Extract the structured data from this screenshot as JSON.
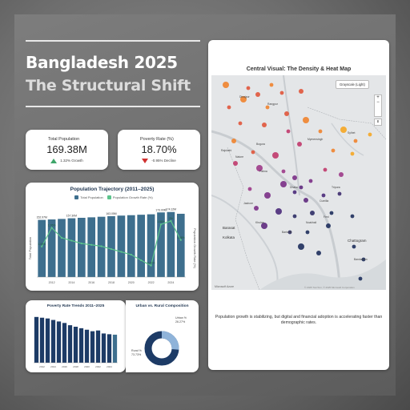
{
  "header": {
    "title": "Bangladesh 2025",
    "subtitle": "The Structural Shift"
  },
  "kpis": {
    "population": {
      "label": "Total Population",
      "value": "169.38M",
      "delta": "1.32% Growth"
    },
    "poverty": {
      "label": "Poverty Rate (%)",
      "value": "18.70%",
      "delta": "-0.95% Decline"
    }
  },
  "trajectory": {
    "title": "Population Trajectory (2011–2025)",
    "legend_population": "Total Population",
    "legend_growth": "Population Growth Rate (%)",
    "ylabel_left": "Total Population",
    "ylabel_right": "Population Growth Rate (%)",
    "x_ticks": [
      "2012",
      "2014",
      "2016",
      "2018",
      "2020",
      "2022",
      "2024"
    ],
    "bar_labels": [
      {
        "label": "152.97M"
      },
      {
        "label": "157.30M"
      },
      {
        "label": "163.05M"
      },
      {
        "label": "173.00M"
      },
      {
        "label": "174.12M"
      }
    ],
    "growth_labels": [
      {
        "label": "1.09%"
      },
      {
        "label": "1.76%"
      },
      {
        "label": "0.41%"
      },
      {
        "label": "1.88%"
      },
      {
        "label": "1.08%"
      },
      {
        "label": "2%"
      }
    ]
  },
  "poverty_trend": {
    "title": "Poverty Rate Trends 2011–2025",
    "x_ticks": [
      "2012",
      "2014",
      "2016",
      "2018",
      "2020",
      "2022",
      "2024"
    ]
  },
  "urban_rural": {
    "title": "Urban vs. Rural Composition",
    "urban_label": "Urban %",
    "urban_value": "26.27%",
    "rural_label": "Rural %",
    "rural_value": "73.73%"
  },
  "map": {
    "title": "Central Visual: The Density & Heat Map",
    "style_button": "Grayscale (Light)",
    "attribution": "Microsoft Azure",
    "copyright": "© 2025 TomTom, © 2025 Microsoft Corporation",
    "places": {
      "barasat": "Barasat",
      "kolkata": "Kolkata",
      "chattogram": "Chattogram",
      "sylhet": "Sylhet",
      "rangpur": "Rangpur",
      "dhaka": "Dhaka",
      "tripura": "Tripura",
      "bandarban": "Bandarban",
      "barisal": "Barishal",
      "khulna": "Khulna",
      "mymensingh": "Mymensingh",
      "rajshahi": "Rajshahi",
      "bogura": "Bogura",
      "jashore": "Jashore",
      "cumilla": "Cumilla",
      "noakhali": "Noakhali",
      "feni": "Feni",
      "pabna": "Pabna",
      "natore": "Natore",
      "dinajpur": "Dinajpur"
    }
  },
  "footnote": "Population growth is stabilizing, but digital and financial adoption is accelerating faster than demographic rates.",
  "chart_data": [
    {
      "type": "bar",
      "title": "Population Trajectory (2011–2025)",
      "x": [
        2011,
        2012,
        2013,
        2014,
        2015,
        2016,
        2017,
        2018,
        2019,
        2020,
        2021,
        2022,
        2023,
        2024,
        2025
      ],
      "series": [
        {
          "name": "Total Population",
          "values": [
            152.97,
            154.2,
            155.6,
            157.3,
            158.6,
            159.9,
            161.4,
            163.05,
            164.5,
            165.6,
            166.8,
            168.0,
            173.0,
            174.12,
            169.38
          ]
        },
        {
          "name": "Population Growth Rate (%)",
          "type": "line",
          "values": [
            1.09,
            1.76,
            1.4,
            1.3,
            1.2,
            1.15,
            1.1,
            1.0,
            0.9,
            0.8,
            0.6,
            0.41,
            1.88,
            2.0,
            1.32
          ]
        }
      ],
      "ylabel": "Total Population",
      "ylabel_right": "Population Growth Rate (%)"
    },
    {
      "type": "bar",
      "title": "Poverty Rate Trends 2011–2025",
      "x": [
        2011,
        2012,
        2013,
        2014,
        2015,
        2016,
        2017,
        2018,
        2019,
        2020,
        2021,
        2022,
        2023,
        2024,
        2025
      ],
      "values": [
        30.5,
        30,
        29.5,
        28.5,
        27.5,
        26.5,
        25,
        24,
        23,
        22,
        21,
        21.5,
        19.5,
        19.0,
        18.7
      ]
    },
    {
      "type": "pie",
      "title": "Urban vs. Rural Composition",
      "categories": [
        "Urban %",
        "Rural %"
      ],
      "values": [
        26.27,
        73.73
      ]
    }
  ]
}
